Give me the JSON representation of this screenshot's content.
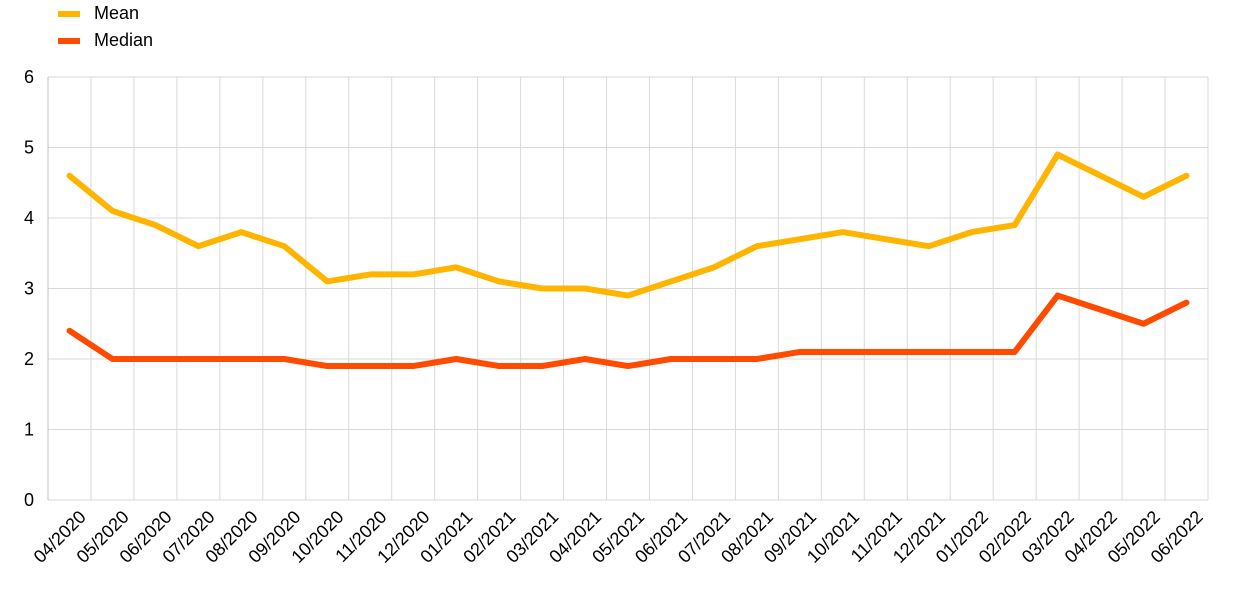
{
  "chart_data": {
    "type": "line",
    "categories": [
      "04/2020",
      "05/2020",
      "06/2020",
      "07/2020",
      "08/2020",
      "09/2020",
      "10/2020",
      "11/2020",
      "12/2020",
      "01/2021",
      "02/2021",
      "03/2021",
      "04/2021",
      "05/2021",
      "06/2021",
      "07/2021",
      "08/2021",
      "09/2021",
      "10/2021",
      "11/2021",
      "12/2021",
      "01/2022",
      "02/2022",
      "03/2022",
      "04/2022",
      "05/2022",
      "06/2022"
    ],
    "series": [
      {
        "name": "Mean",
        "color": "#FFB400",
        "values": [
          4.6,
          4.1,
          3.9,
          3.6,
          3.8,
          3.6,
          3.1,
          3.2,
          3.2,
          3.3,
          3.1,
          3.0,
          3.0,
          2.9,
          3.1,
          3.3,
          3.6,
          3.7,
          3.8,
          3.7,
          3.6,
          3.8,
          3.9,
          4.9,
          4.6,
          4.3,
          4.6
        ]
      },
      {
        "name": "Median",
        "color": "#FF4B00",
        "values": [
          2.4,
          2.0,
          2.0,
          2.0,
          2.0,
          2.0,
          1.9,
          1.9,
          1.9,
          2.0,
          1.9,
          1.9,
          2.0,
          1.9,
          2.0,
          2.0,
          2.0,
          2.1,
          2.1,
          2.1,
          2.1,
          2.1,
          2.1,
          2.9,
          2.7,
          2.5,
          2.8
        ]
      }
    ],
    "ylim": [
      0,
      6
    ],
    "yticks": [
      "0",
      "1",
      "2",
      "3",
      "4",
      "5",
      "6"
    ],
    "grid": true,
    "legend_position": "top-left"
  }
}
